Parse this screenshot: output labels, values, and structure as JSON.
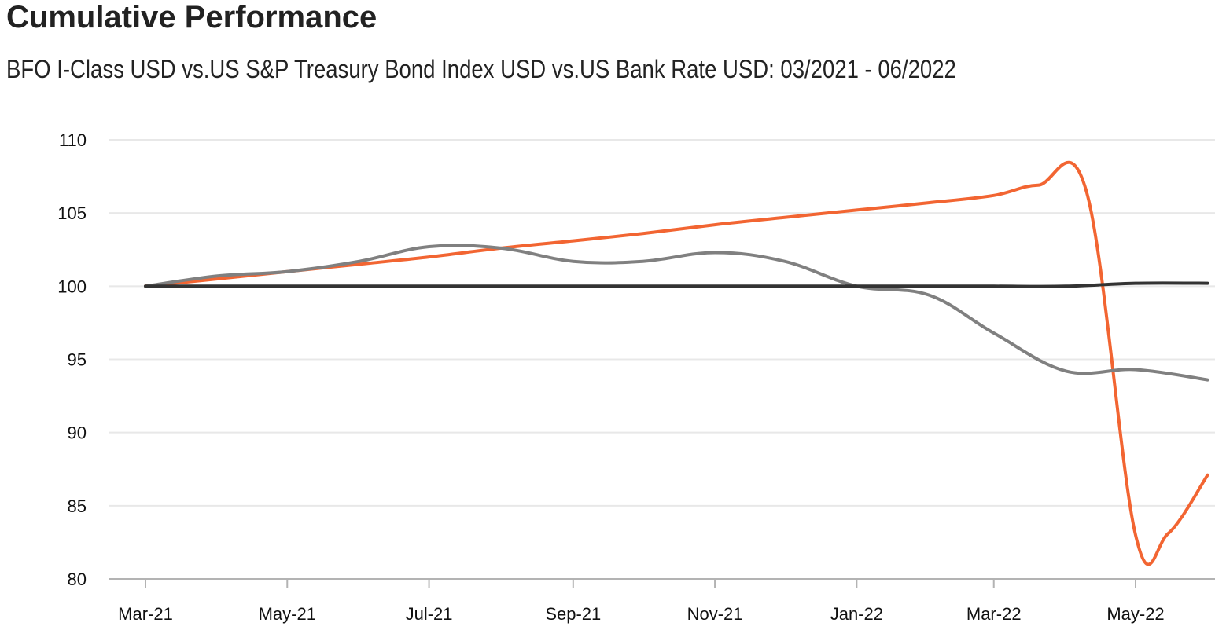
{
  "header": {
    "title": "Cumulative Performance",
    "subtitle": "BFO I-Class USD vs.US S&P Treasury Bond Index USD vs.US Bank Rate USD: 03/2021 - 06/2022"
  },
  "chart_data": {
    "type": "line",
    "title": "Cumulative Performance",
    "subtitle": "BFO I-Class USD vs.US S&P Treasury Bond Index USD vs.US Bank Rate USD: 03/2021 - 06/2022",
    "xlabel": "",
    "ylabel": "",
    "x_ticks": [
      "Mar-21",
      "May-21",
      "Jul-21",
      "Sep-21",
      "Nov-21",
      "Jan-22",
      "Mar-22",
      "May-22"
    ],
    "y_ticks": [
      80,
      85,
      90,
      95,
      100,
      105,
      110
    ],
    "ylim": [
      80,
      110
    ],
    "grid": "horizontal",
    "legend": "none",
    "series": [
      {
        "color": "#f26532",
        "points": [
          [
            "2021-03-01",
            100.0
          ],
          [
            "2021-04-01",
            100.5
          ],
          [
            "2021-05-01",
            101.0
          ],
          [
            "2021-06-01",
            101.5
          ],
          [
            "2021-07-01",
            102.0
          ],
          [
            "2021-08-01",
            102.6
          ],
          [
            "2021-09-01",
            103.1
          ],
          [
            "2021-10-01",
            103.6
          ],
          [
            "2021-11-01",
            104.2
          ],
          [
            "2021-12-01",
            104.7
          ],
          [
            "2022-01-01",
            105.2
          ],
          [
            "2022-02-01",
            105.7
          ],
          [
            "2022-03-01",
            106.2
          ],
          [
            "2022-03-20",
            106.9
          ],
          [
            "2022-04-10",
            106.4
          ],
          [
            "2022-05-01",
            83.0
          ],
          [
            "2022-05-15",
            83.1
          ],
          [
            "2022-06-01",
            87.1
          ]
        ]
      },
      {
        "color": "#808080",
        "points": [
          [
            "2021-03-01",
            100.0
          ],
          [
            "2021-04-01",
            100.7
          ],
          [
            "2021-05-01",
            101.0
          ],
          [
            "2021-06-01",
            101.7
          ],
          [
            "2021-07-01",
            102.7
          ],
          [
            "2021-08-01",
            102.6
          ],
          [
            "2021-09-01",
            101.7
          ],
          [
            "2021-10-01",
            101.7
          ],
          [
            "2021-11-01",
            102.3
          ],
          [
            "2021-12-01",
            101.7
          ],
          [
            "2022-01-01",
            100.0
          ],
          [
            "2022-02-01",
            99.4
          ],
          [
            "2022-03-01",
            96.8
          ],
          [
            "2022-04-01",
            94.2
          ],
          [
            "2022-05-01",
            94.3
          ],
          [
            "2022-06-01",
            93.6
          ]
        ]
      },
      {
        "color": "#333333",
        "points": [
          [
            "2021-03-01",
            100.0
          ],
          [
            "2021-04-01",
            100.0
          ],
          [
            "2021-05-01",
            100.0
          ],
          [
            "2021-06-01",
            100.0
          ],
          [
            "2021-07-01",
            100.0
          ],
          [
            "2021-08-01",
            100.0
          ],
          [
            "2021-09-01",
            100.0
          ],
          [
            "2021-10-01",
            100.0
          ],
          [
            "2021-11-01",
            100.0
          ],
          [
            "2021-12-01",
            100.0
          ],
          [
            "2022-01-01",
            100.0
          ],
          [
            "2022-02-01",
            100.0
          ],
          [
            "2022-03-01",
            100.0
          ],
          [
            "2022-04-01",
            100.0
          ],
          [
            "2022-05-01",
            100.2
          ],
          [
            "2022-06-01",
            100.2
          ]
        ]
      }
    ]
  }
}
